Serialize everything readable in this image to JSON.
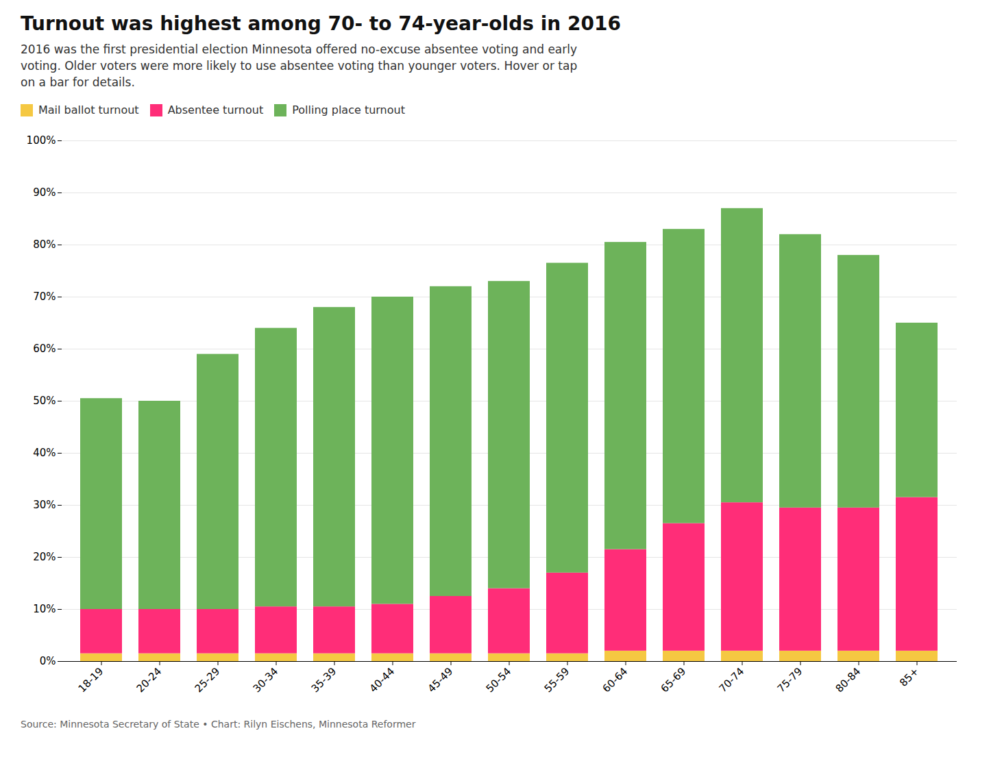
{
  "chart_data": {
    "type": "bar",
    "title": "Turnout was highest among 70- to 74-year-olds in 2016",
    "subtitle": [
      "2016 was the first presidential election Minnesota offered no-excuse absentee voting and early",
      "voting. Older voters were more likely to use absentee voting than younger voters. Hover or tap",
      "on a bar for details."
    ],
    "source": "Source: Minnesota Secretary of State • Chart: Rilyn Eischens, Minnesota Reformer",
    "categories": [
      "18-19",
      "20-24",
      "25-29",
      "30-34",
      "35-39",
      "40-44",
      "45-49",
      "50-54",
      "55-59",
      "60-64",
      "65-69",
      "70-74",
      "75-79",
      "80-84",
      "85+"
    ],
    "series": [
      {
        "name": "Mail ballot turnout",
        "color": "#F5C842",
        "values": [
          1.5,
          1.5,
          1.5,
          1.5,
          1.5,
          1.5,
          1.5,
          1.5,
          1.5,
          2.0,
          2.0,
          2.0,
          2.0,
          2.0,
          2.0
        ]
      },
      {
        "name": "Absentee turnout",
        "color": "#FF2D78",
        "values": [
          8.5,
          8.5,
          8.5,
          9.0,
          9.0,
          9.5,
          11.0,
          12.5,
          15.5,
          19.5,
          24.5,
          28.5,
          27.5,
          27.5,
          29.5
        ]
      },
      {
        "name": "Polling place turnout",
        "color": "#6DB35A",
        "values": [
          40.5,
          40.0,
          49.0,
          53.5,
          57.5,
          59.0,
          59.5,
          59.0,
          59.5,
          59.0,
          56.5,
          56.5,
          52.5,
          48.5,
          33.5
        ]
      }
    ],
    "stacked": true,
    "grid": true,
    "legend": "top",
    "ylim": [
      0,
      100
    ],
    "yticks": [
      {
        "value": 0,
        "label": "0%"
      },
      {
        "value": 10,
        "label": "10%"
      },
      {
        "value": 20,
        "label": "20%"
      },
      {
        "value": 30,
        "label": "30%"
      },
      {
        "value": 40,
        "label": "40%"
      },
      {
        "value": 50,
        "label": "50%"
      },
      {
        "value": 60,
        "label": "60%"
      },
      {
        "value": 70,
        "label": "70%"
      },
      {
        "value": 80,
        "label": "80%"
      },
      {
        "value": 90,
        "label": "90%"
      },
      {
        "value": 100,
        "label": "100%"
      }
    ]
  }
}
